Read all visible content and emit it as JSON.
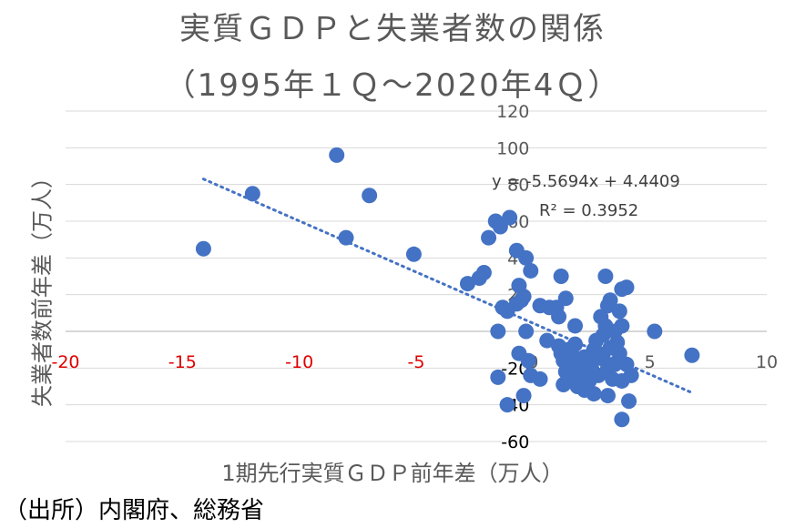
{
  "chart_data": {
    "type": "scatter",
    "title": "実質ＧＤＰと失業者数の関係",
    "subtitle": "（1995年１Ｑ～2020年4Ｑ）",
    "xlabel": "1期先行実質ＧＤＰ前年差（万人）",
    "ylabel": "失業者数前年差（万人）",
    "source": "（出所）内閣府、総務省",
    "xlim": [
      -20,
      10
    ],
    "ylim": [
      -60,
      120
    ],
    "x_ticks": [
      "-20",
      "-15",
      "-10",
      "-5",
      "0",
      "5",
      "10"
    ],
    "y_ticks": [
      "-60",
      "-40",
      "-20",
      "0",
      "20",
      "40",
      "60",
      "80",
      "100",
      "120"
    ],
    "grid": "horizontal",
    "trendline": {
      "type": "linear",
      "slope": -5.5694,
      "intercept": 4.4409,
      "x_range": [
        -14.1,
        6.8
      ],
      "equation": "y = -5.5694x + 4.4409",
      "r_squared": "R² = 0.3952"
    },
    "points": [
      [
        -14.1,
        45
      ],
      [
        -12.0,
        75
      ],
      [
        -8.4,
        96
      ],
      [
        -8.0,
        51
      ],
      [
        -7.0,
        74
      ],
      [
        -5.1,
        42
      ],
      [
        -2.8,
        26
      ],
      [
        -2.3,
        29
      ],
      [
        -2.1,
        32
      ],
      [
        -1.9,
        51
      ],
      [
        -1.6,
        60
      ],
      [
        -1.4,
        57
      ],
      [
        -1.0,
        62
      ],
      [
        -0.7,
        44
      ],
      [
        -0.3,
        40
      ],
      [
        -0.1,
        33
      ],
      [
        -0.6,
        25
      ],
      [
        -0.4,
        19
      ],
      [
        -1.3,
        13
      ],
      [
        -1.1,
        11
      ],
      [
        -0.7,
        15
      ],
      [
        -0.5,
        17
      ],
      [
        -1.5,
        0
      ],
      [
        -0.3,
        0
      ],
      [
        -0.6,
        -12
      ],
      [
        -0.2,
        -16
      ],
      [
        -1.5,
        -25
      ],
      [
        -0.1,
        -24
      ],
      [
        0.3,
        -26
      ],
      [
        -0.4,
        -35
      ],
      [
        -1.1,
        -40
      ],
      [
        0.3,
        14
      ],
      [
        0.7,
        13
      ],
      [
        1.0,
        13
      ],
      [
        1.1,
        8
      ],
      [
        1.4,
        18
      ],
      [
        1.2,
        30
      ],
      [
        1.8,
        3
      ],
      [
        0.6,
        -5
      ],
      [
        1.1,
        -8
      ],
      [
        1.2,
        -12
      ],
      [
        1.5,
        -10
      ],
      [
        1.8,
        -7
      ],
      [
        1.3,
        -16
      ],
      [
        1.6,
        -20
      ],
      [
        1.9,
        -15
      ],
      [
        2.1,
        -18
      ],
      [
        1.4,
        -22
      ],
      [
        1.7,
        -26
      ],
      [
        2.0,
        -25
      ],
      [
        2.3,
        -22
      ],
      [
        2.5,
        -20
      ],
      [
        1.3,
        -29
      ],
      [
        1.9,
        -30
      ],
      [
        2.2,
        -32
      ],
      [
        2.6,
        -34
      ],
      [
        2.4,
        -27
      ],
      [
        2.8,
        -24
      ],
      [
        3.0,
        -15
      ],
      [
        3.2,
        -20
      ],
      [
        3.5,
        -18
      ],
      [
        2.9,
        8
      ],
      [
        3.2,
        14
      ],
      [
        3.1,
        3
      ],
      [
        3.3,
        17
      ],
      [
        3.5,
        0
      ],
      [
        3.6,
        -6
      ],
      [
        3.0,
        -2
      ],
      [
        2.7,
        -5
      ],
      [
        3.3,
        -9
      ],
      [
        3.7,
        -12
      ],
      [
        3.1,
        30
      ],
      [
        3.8,
        23
      ],
      [
        4.0,
        24
      ],
      [
        3.7,
        11
      ],
      [
        3.8,
        3
      ],
      [
        4.0,
        -18
      ],
      [
        4.2,
        -24
      ],
      [
        3.8,
        -27
      ],
      [
        3.2,
        -35
      ],
      [
        4.1,
        -38
      ],
      [
        3.8,
        -48
      ],
      [
        5.2,
        0
      ],
      [
        6.8,
        -13
      ],
      [
        2.6,
        -10
      ],
      [
        2.2,
        -14
      ],
      [
        2.8,
        -12
      ],
      [
        3.4,
        -26
      ],
      [
        2.4,
        -16
      ]
    ]
  }
}
